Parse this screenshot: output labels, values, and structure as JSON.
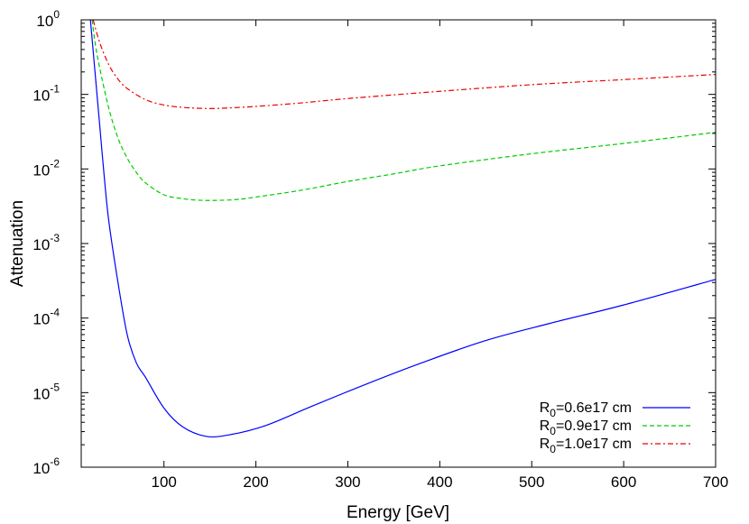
{
  "chart_data": {
    "type": "line",
    "xlabel": "Energy [GeV]",
    "ylabel": "Attenuation",
    "xlim": [
      10,
      700
    ],
    "ylim": [
      1e-06,
      1
    ],
    "yscale": "log",
    "x_ticks": [
      100,
      200,
      300,
      400,
      500,
      600,
      700
    ],
    "y_ticks": [
      {
        "value": 1e-06,
        "base": "10",
        "exp": "-6"
      },
      {
        "value": 1e-05,
        "base": "10",
        "exp": "-5"
      },
      {
        "value": 0.0001,
        "base": "10",
        "exp": "-4"
      },
      {
        "value": 0.001,
        "base": "10",
        "exp": "-3"
      },
      {
        "value": 0.01,
        "base": "10",
        "exp": "-2"
      },
      {
        "value": 0.1,
        "base": "10",
        "exp": "-1"
      },
      {
        "value": 1,
        "base": "10",
        "exp": "0"
      }
    ],
    "grid": false,
    "legend_position": "bottom-right",
    "series": [
      {
        "name": "R0=0.6e17 cm",
        "legend_parts": [
          "R",
          "0",
          "=0.6e17 cm"
        ],
        "color": "#0000ff",
        "dash": "solid",
        "x": [
          20,
          25,
          30,
          35,
          40,
          50,
          60,
          70,
          80,
          100,
          120,
          145,
          170,
          210,
          260,
          320,
          380,
          450,
          520,
          600,
          700
        ],
        "y": [
          1.0,
          0.2,
          0.04,
          0.008,
          0.002,
          0.0003,
          6e-05,
          2.5e-05,
          1.6e-05,
          6.2e-06,
          3.5e-06,
          2.6e-06,
          2.7e-06,
          3.6e-06,
          6.5e-06,
          1.3e-05,
          2.5e-05,
          5e-05,
          8.5e-05,
          0.00015,
          0.00033
        ]
      },
      {
        "name": "R0=0.9e17 cm",
        "legend_parts": [
          "R",
          "0",
          "=0.9e17 cm"
        ],
        "color": "#00cc00",
        "dash": "5,3",
        "x": [
          22,
          25,
          30,
          40,
          50,
          60,
          70,
          80,
          100,
          120,
          140,
          160,
          180,
          200,
          250,
          300,
          350,
          400,
          500,
          600,
          700
        ],
        "y": [
          1.0,
          0.5,
          0.23,
          0.065,
          0.026,
          0.014,
          0.009,
          0.0065,
          0.0045,
          0.004,
          0.0038,
          0.0038,
          0.0039,
          0.0042,
          0.0052,
          0.0068,
          0.0086,
          0.011,
          0.016,
          0.022,
          0.031
        ]
      },
      {
        "name": "R0=1.0e17 cm",
        "legend_parts": [
          "R",
          "0",
          "=1.0e17 cm"
        ],
        "color": "#ee0000",
        "dash": "6,3,2,3",
        "x": [
          23,
          30,
          40,
          50,
          60,
          80,
          100,
          120,
          140,
          160,
          200,
          250,
          300,
          400,
          500,
          600,
          700
        ],
        "y": [
          1.0,
          0.5,
          0.25,
          0.16,
          0.12,
          0.085,
          0.072,
          0.067,
          0.065,
          0.065,
          0.069,
          0.077,
          0.088,
          0.11,
          0.135,
          0.158,
          0.185
        ]
      }
    ]
  }
}
